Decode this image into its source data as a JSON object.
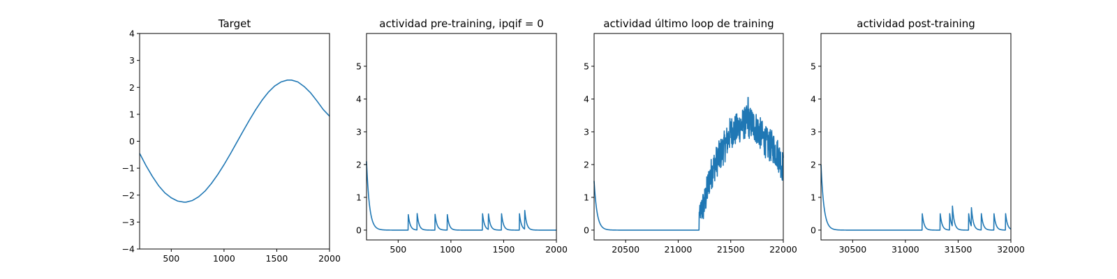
{
  "chart_data": [
    {
      "type": "line",
      "title": "Target",
      "xlim": [
        200,
        2000
      ],
      "ylim": [
        -4,
        4
      ],
      "xticks": [
        500,
        1000,
        1500,
        2000
      ],
      "yticks": [
        -4,
        -3,
        -2,
        -1,
        0,
        1,
        2,
        3,
        4
      ],
      "grid": false,
      "color": "#1f77b4",
      "series": [
        {
          "x": [
            200,
            260,
            320,
            380,
            440,
            500,
            560,
            620,
            640,
            700,
            760,
            820,
            880,
            940,
            1000,
            1060,
            1120,
            1180,
            1240,
            1300,
            1360,
            1420,
            1480,
            1540,
            1600,
            1640,
            1700,
            1760,
            1820,
            1880,
            1940,
            2000
          ],
          "y": [
            -0.45,
            -0.9,
            -1.3,
            -1.65,
            -1.92,
            -2.1,
            -2.22,
            -2.26,
            -2.26,
            -2.2,
            -2.06,
            -1.85,
            -1.57,
            -1.24,
            -0.87,
            -0.47,
            -0.05,
            0.37,
            0.78,
            1.17,
            1.52,
            1.82,
            2.05,
            2.2,
            2.27,
            2.27,
            2.2,
            2.03,
            1.8,
            1.5,
            1.18,
            0.93
          ]
        }
      ]
    },
    {
      "type": "line",
      "title": "actividad pre-training, ipqif = 0",
      "xlim": [
        200,
        2000
      ],
      "ylim": [
        -0.3,
        6.0
      ],
      "xticks": [
        500,
        1000,
        1500,
        2000
      ],
      "yticks": [
        0,
        1,
        2,
        3,
        4,
        5
      ],
      "grid": false,
      "color": "#1f77b4",
      "series": [
        {
          "baseline": 0.0,
          "start_level": 2.1,
          "spikes": [
            {
              "x": 595,
              "y": 0.5
            },
            {
              "x": 680,
              "y": 0.5
            },
            {
              "x": 850,
              "y": 0.48
            },
            {
              "x": 965,
              "y": 0.5
            },
            {
              "x": 1300,
              "y": 0.5
            },
            {
              "x": 1355,
              "y": 0.5
            },
            {
              "x": 1480,
              "y": 0.5
            },
            {
              "x": 1650,
              "y": 0.5
            },
            {
              "x": 1700,
              "y": 0.57
            }
          ]
        }
      ]
    },
    {
      "type": "line",
      "title": "actividad último loop de training",
      "xlim": [
        20200,
        22000
      ],
      "ylim": [
        -0.3,
        6.0
      ],
      "xticks": [
        20500,
        21000,
        21500,
        22000
      ],
      "yticks": [
        0,
        1,
        2,
        3,
        4,
        5
      ],
      "grid": false,
      "color": "#1f77b4",
      "series": [
        {
          "baseline": 0.0,
          "start_level": 1.5,
          "envelope_x": [
            21200,
            21250,
            21300,
            21350,
            21400,
            21450,
            21500,
            21550,
            21600,
            21650,
            21700,
            21750,
            21800,
            21850,
            21900,
            21950,
            22000
          ],
          "envelope_y": [
            0.5,
            0.8,
            1.6,
            2.0,
            2.3,
            2.6,
            3.0,
            3.05,
            3.2,
            3.3,
            3.25,
            3.1,
            2.85,
            2.6,
            2.55,
            2.3,
            1.9
          ],
          "peak": {
            "x": 21665,
            "y": 4.05
          }
        }
      ]
    },
    {
      "type": "line",
      "title": "actividad post-training",
      "xlim": [
        30200,
        32000
      ],
      "ylim": [
        -0.3,
        6.0
      ],
      "xticks": [
        30500,
        31000,
        31500,
        32000
      ],
      "yticks": [
        0,
        1,
        2,
        3,
        4,
        5
      ],
      "grid": false,
      "color": "#1f77b4",
      "series": [
        {
          "baseline": 0.0,
          "start_level": 2.0,
          "spikes": [
            {
              "x": 31160,
              "y": 0.5
            },
            {
              "x": 31330,
              "y": 0.5
            },
            {
              "x": 31420,
              "y": 0.5
            },
            {
              "x": 31445,
              "y": 0.65
            },
            {
              "x": 31600,
              "y": 0.5
            },
            {
              "x": 31625,
              "y": 0.6
            },
            {
              "x": 31720,
              "y": 0.5
            },
            {
              "x": 31840,
              "y": 0.5
            },
            {
              "x": 31950,
              "y": 0.5
            }
          ]
        }
      ]
    }
  ]
}
